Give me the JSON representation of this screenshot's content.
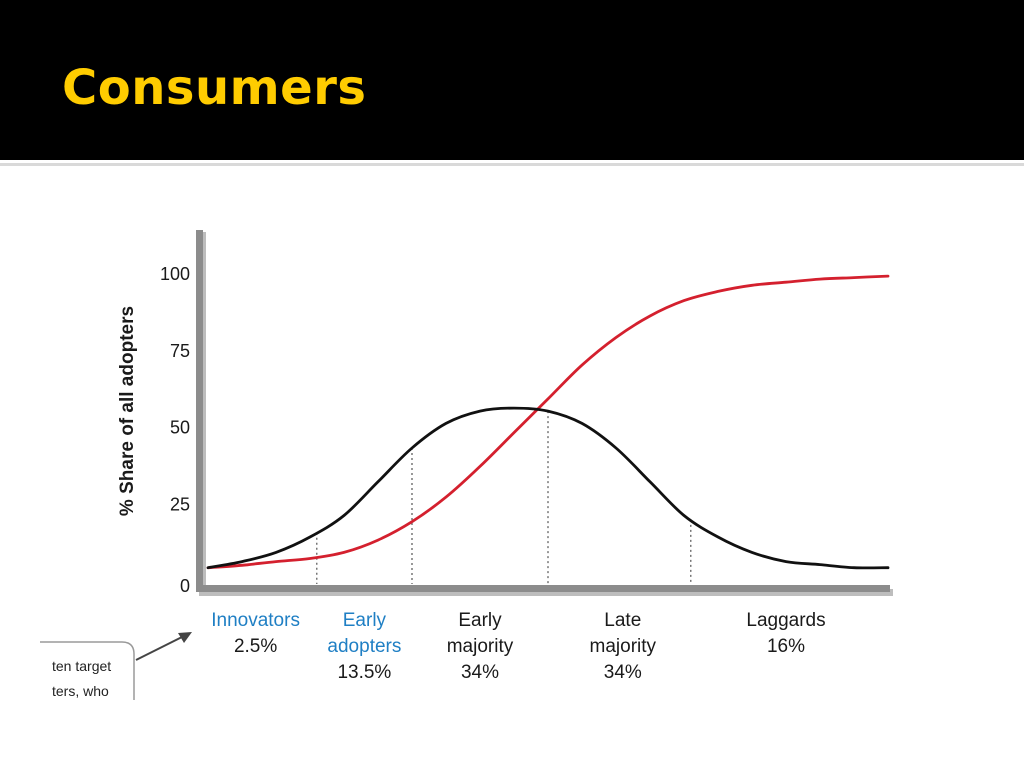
{
  "slide": {
    "title": "Consumers",
    "title_color": "#FFCC00",
    "header_bg": "#000000"
  },
  "callout": {
    "lines": [
      "ten target",
      "ters, who"
    ],
    "arrow_icon": "arrow-up-right-icon"
  },
  "chart_data": {
    "type": "line",
    "title": "",
    "ylabel": "% Share of all adopters",
    "xlabel": "",
    "ylim": [
      0,
      100
    ],
    "yticks": [
      0,
      25,
      50,
      75,
      100
    ],
    "grid": false,
    "x_range": [
      0,
      100
    ],
    "series": [
      {
        "color": "#d4202e",
        "x": [
          0,
          5,
          10,
          15,
          20,
          25,
          30,
          35,
          40,
          45,
          50,
          55,
          60,
          65,
          70,
          75,
          80,
          85,
          90,
          95,
          100
        ],
        "values": [
          4,
          4.8,
          6,
          7,
          9,
          13,
          19,
          27,
          37,
          48,
          59,
          70,
          79,
          86,
          91,
          94,
          96,
          97,
          98,
          98.5,
          99
        ]
      },
      {
        "color": "#111111",
        "x": [
          0,
          5,
          10,
          15,
          20,
          25,
          30,
          35,
          40,
          45,
          50,
          55,
          60,
          65,
          70,
          75,
          80,
          85,
          90,
          95,
          100
        ],
        "values": [
          4,
          6,
          9,
          14,
          21,
          32,
          43,
          51,
          55,
          56,
          55,
          51,
          43,
          32,
          21,
          14,
          9,
          6,
          5,
          4,
          4
        ]
      }
    ],
    "dividers_x": [
      16,
      30,
      50,
      71
    ],
    "segments": [
      {
        "name": "Innovators",
        "share": "2.5%",
        "center_x": 7,
        "color": "#1f7fc4"
      },
      {
        "name": "Early\nadopters",
        "share": "13.5%",
        "center_x": 23,
        "color": "#1f7fc4"
      },
      {
        "name": "Early\nmajority",
        "share": "34%",
        "center_x": 40,
        "color": "#1a1a1a"
      },
      {
        "name": "Late\nmajority",
        "share": "34%",
        "center_x": 61,
        "color": "#1a1a1a"
      },
      {
        "name": "Laggards",
        "share": "16%",
        "center_x": 85,
        "color": "#1a1a1a"
      }
    ]
  }
}
